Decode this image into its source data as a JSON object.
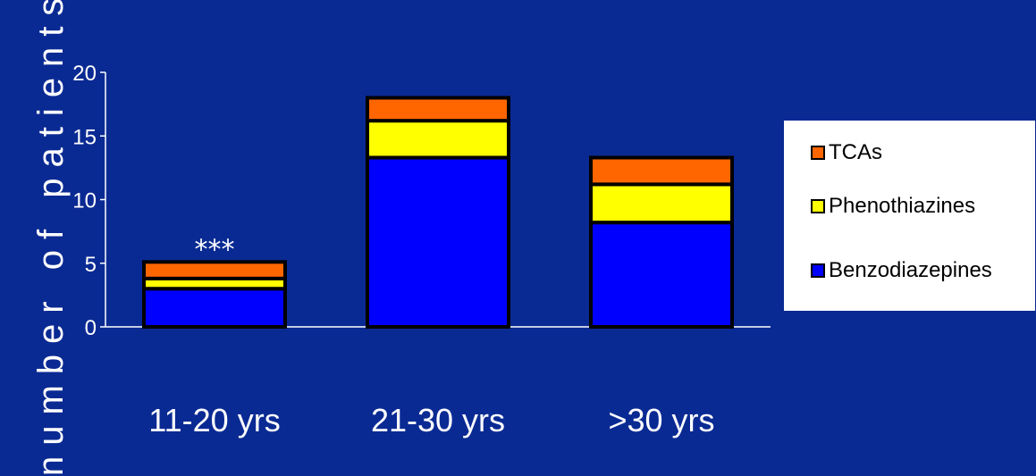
{
  "chart_data": {
    "type": "bar",
    "stacked": true,
    "categories": [
      "11-20 yrs",
      "21-30 yrs",
      ">30 yrs"
    ],
    "series": [
      {
        "name": "Benzodiazepines",
        "color": "#0000ff",
        "values": [
          3,
          13.3,
          8.2
        ]
      },
      {
        "name": "Phenothiazines",
        "color": "#ffff00",
        "values": [
          0.8,
          2.9,
          3
        ]
      },
      {
        "name": "TCAs",
        "color": "#ff6600",
        "values": [
          1.3,
          1.8,
          2.1
        ]
      }
    ],
    "title": "",
    "xlabel": "",
    "ylabel": "number of patients",
    "ylim": [
      0,
      20
    ],
    "yticks": [
      "0",
      "5",
      "10",
      "15",
      "20"
    ],
    "annotations": [
      {
        "category": "11-20 yrs",
        "text": "***"
      }
    ],
    "legend": {
      "position": "right",
      "order": [
        "TCAs",
        "Phenothiazines",
        "Benzodiazepines"
      ]
    },
    "grid": false
  },
  "colors": {
    "background": "#0a2a93",
    "axis": "#ffffff",
    "legend_background": "#ffffff"
  }
}
